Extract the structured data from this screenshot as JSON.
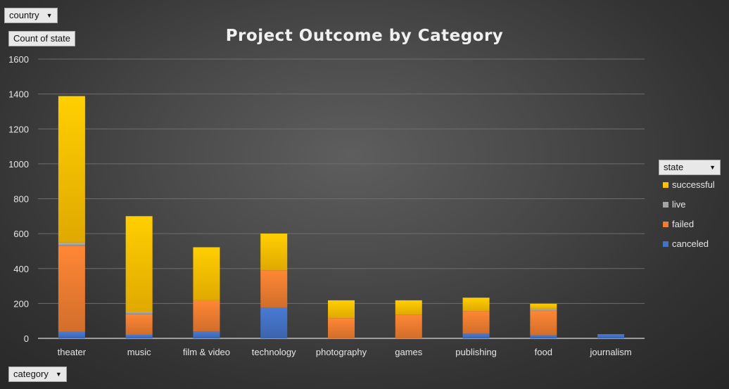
{
  "filters": {
    "country_label": "country",
    "values_label": "Count of state",
    "category_label": "category",
    "state_label": "state"
  },
  "colors": {
    "successful": "#ffc000",
    "live": "#a5a5a5",
    "failed": "#ed7d31",
    "canceled": "#4472c4"
  },
  "chart_data": {
    "type": "bar",
    "stacked": true,
    "title": "Project Outcome by Category",
    "xlabel": "",
    "ylabel": "",
    "ylim": [
      0,
      1600
    ],
    "yticks": [
      0,
      200,
      400,
      600,
      800,
      1000,
      1200,
      1400,
      1600
    ],
    "grid": true,
    "legend_position": "right",
    "categories": [
      "theater",
      "music",
      "film & video",
      "technology",
      "photography",
      "games",
      "publishing",
      "food",
      "journalism"
    ],
    "series": [
      {
        "name": "canceled",
        "values": [
          37,
          20,
          40,
          177,
          0,
          0,
          27,
          18,
          24
        ]
      },
      {
        "name": "failed",
        "values": [
          492,
          118,
          178,
          213,
          116,
          136,
          129,
          139,
          0
        ]
      },
      {
        "name": "live",
        "values": [
          20,
          15,
          0,
          0,
          0,
          0,
          0,
          10,
          0
        ]
      },
      {
        "name": "successful",
        "values": [
          839,
          547,
          304,
          210,
          102,
          82,
          77,
          31,
          0
        ]
      }
    ]
  }
}
